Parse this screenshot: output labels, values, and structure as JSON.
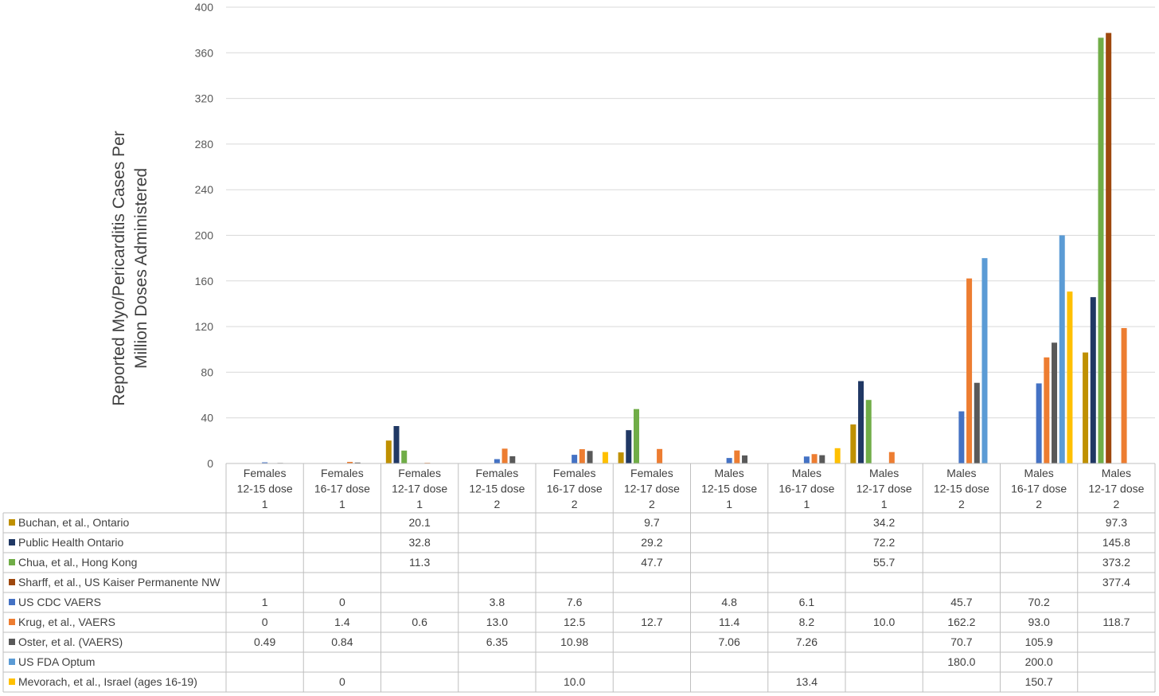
{
  "chart_data": {
    "type": "bar",
    "ylabel_lines": [
      "Reported Myo/Pericarditis Cases Per",
      "Million Doses Administered"
    ],
    "ylim": [
      0,
      400
    ],
    "yticks": [
      0,
      40,
      80,
      120,
      160,
      200,
      240,
      280,
      320,
      360,
      400
    ],
    "grid": true,
    "legend": "data-table",
    "categories": [
      [
        "Females",
        "12-15 dose",
        "1"
      ],
      [
        "Females",
        "16-17 dose",
        "1"
      ],
      [
        "Females",
        "12-17 dose",
        "1"
      ],
      [
        "Females",
        "12-15 dose",
        "2"
      ],
      [
        "Females",
        "16-17 dose",
        "2"
      ],
      [
        "Females",
        "12-17 dose",
        "2"
      ],
      [
        "Males",
        "12-15 dose",
        "1"
      ],
      [
        "Males",
        "16-17 dose",
        "1"
      ],
      [
        "Males",
        "12-17 dose",
        "1"
      ],
      [
        "Males",
        "12-15 dose",
        "2"
      ],
      [
        "Males",
        "16-17 dose",
        "2"
      ],
      [
        "Males",
        "12-17 dose",
        "2"
      ]
    ],
    "series": [
      {
        "name": "Buchan, et al., Ontario",
        "color": "#BF9000",
        "values": [
          null,
          null,
          20.1,
          null,
          null,
          9.7,
          null,
          null,
          34.2,
          null,
          null,
          97.3
        ],
        "labels": [
          "",
          "",
          "20.1",
          "",
          "",
          "9.7",
          "",
          "",
          "34.2",
          "",
          "",
          "97.3"
        ]
      },
      {
        "name": "Public Health Ontario",
        "color": "#203864",
        "values": [
          null,
          null,
          32.8,
          null,
          null,
          29.2,
          null,
          null,
          72.2,
          null,
          null,
          145.8
        ],
        "labels": [
          "",
          "",
          "32.8",
          "",
          "",
          "29.2",
          "",
          "",
          "72.2",
          "",
          "",
          "145.8"
        ]
      },
      {
        "name": "Chua, et al., Hong Kong",
        "color": "#70AD47",
        "values": [
          null,
          null,
          11.3,
          null,
          null,
          47.7,
          null,
          null,
          55.7,
          null,
          null,
          373.2
        ],
        "labels": [
          "",
          "",
          "11.3",
          "",
          "",
          "47.7",
          "",
          "",
          "55.7",
          "",
          "",
          "373.2"
        ]
      },
      {
        "name": "Sharff, et al., US Kaiser Permanente NW",
        "color": "#9E480E",
        "values": [
          null,
          null,
          null,
          null,
          null,
          null,
          null,
          null,
          null,
          null,
          null,
          377.4
        ],
        "labels": [
          "",
          "",
          "",
          "",
          "",
          "",
          "",
          "",
          "",
          "",
          "",
          "377.4"
        ]
      },
      {
        "name": "US CDC VAERS",
        "color": "#4472C4",
        "values": [
          1,
          0,
          null,
          3.8,
          7.6,
          null,
          4.8,
          6.1,
          null,
          45.7,
          70.2,
          null
        ],
        "labels": [
          "1",
          "0",
          "",
          "3.8",
          "7.6",
          "",
          "4.8",
          "6.1",
          "",
          "45.7",
          "70.2",
          ""
        ]
      },
      {
        "name": "Krug, et al., VAERS",
        "color": "#ED7D31",
        "values": [
          0,
          1.4,
          0.6,
          13.0,
          12.5,
          12.7,
          11.4,
          8.2,
          10.0,
          162.2,
          93.0,
          118.7
        ],
        "labels": [
          "0",
          "1.4",
          "0.6",
          "13.0",
          "12.5",
          "12.7",
          "11.4",
          "8.2",
          "10.0",
          "162.2",
          "93.0",
          "118.7"
        ]
      },
      {
        "name": "Oster, et al.  (VAERS)",
        "color": "#595959",
        "values": [
          0.49,
          0.84,
          null,
          6.35,
          10.98,
          null,
          7.06,
          7.26,
          null,
          70.7,
          105.9,
          null
        ],
        "labels": [
          "0.49",
          "0.84",
          "",
          "6.35",
          "10.98",
          "",
          "7.06",
          "7.26",
          "",
          "70.7",
          "105.9",
          ""
        ]
      },
      {
        "name": "US FDA Optum",
        "color": "#5B9BD5",
        "values": [
          null,
          null,
          null,
          null,
          null,
          null,
          null,
          null,
          null,
          180.0,
          200.0,
          null
        ],
        "labels": [
          "",
          "",
          "",
          "",
          "",
          "",
          "",
          "",
          "",
          "180.0",
          "200.0",
          ""
        ]
      },
      {
        "name": "Mevorach, et al., Israel (ages 16-19)",
        "color": "#FFC000",
        "values": [
          null,
          0,
          null,
          null,
          10.0,
          null,
          null,
          13.4,
          null,
          null,
          150.7,
          null
        ],
        "labels": [
          "",
          "0",
          "",
          "",
          "10.0",
          "",
          "",
          "13.4",
          "",
          "",
          "150.7",
          ""
        ]
      }
    ]
  }
}
